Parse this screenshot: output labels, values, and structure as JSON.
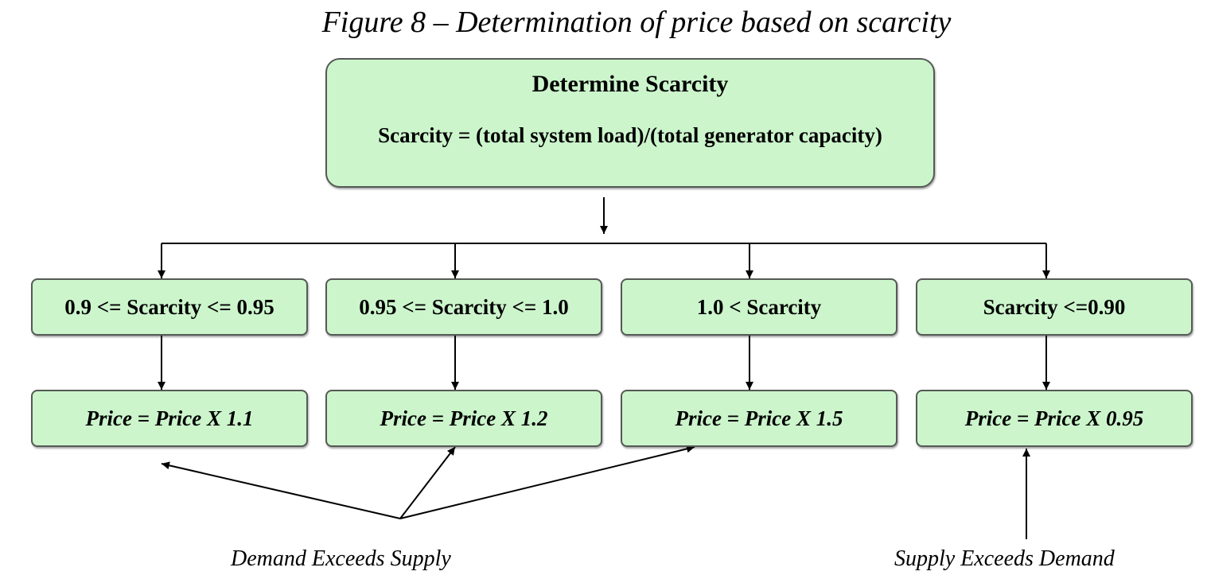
{
  "figure": {
    "title": "Figure 8 – Determination of price based on scarcity"
  },
  "top_box": {
    "title": "Determine Scarcity",
    "formula": "Scarcity = (total system load)/(total generator capacity)"
  },
  "conditions": [
    "0.9 <= Scarcity <= 0.95",
    "0.95 <= Scarcity <= 1.0",
    "1.0 < Scarcity",
    "Scarcity <=0.90"
  ],
  "prices": [
    "Price = Price X 1.1",
    "Price = Price X 1.2",
    "Price = Price X 1.5",
    "Price = Price X 0.95"
  ],
  "notes": {
    "demand": "Demand Exceeds Supply",
    "supply": "Supply Exceeds Demand"
  }
}
